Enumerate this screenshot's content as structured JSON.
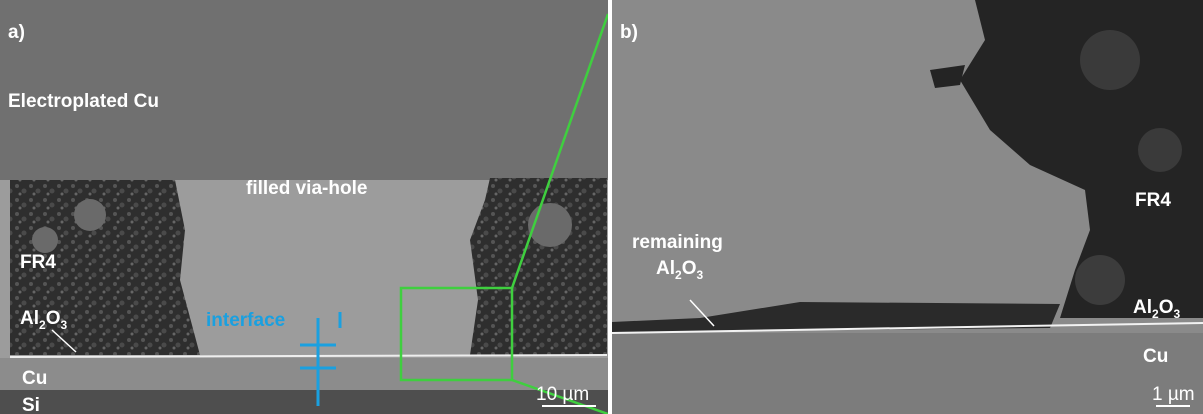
{
  "panel_a": {
    "label": "a)",
    "electroplated": "Electroplated Cu",
    "via": "filled via-hole",
    "fr4": "FR4",
    "al2o3": [
      "Al",
      "2",
      "O",
      "3"
    ],
    "cu": "Cu",
    "si": "Si",
    "interface": "interface",
    "scale": "10 µm"
  },
  "panel_b": {
    "label": "b)",
    "fr4": "FR4",
    "remaining": "remaining",
    "remaining_al2o3": [
      "Al",
      "2",
      "O",
      "3"
    ],
    "al2o3": [
      "Al",
      "2",
      "O",
      "3"
    ],
    "cu": "Cu",
    "scale": "1 µm"
  }
}
